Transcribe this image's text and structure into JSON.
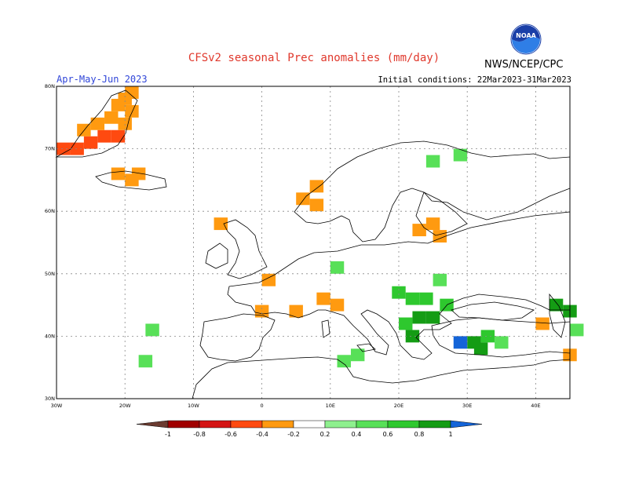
{
  "title": "CFSv2 seasonal Prec anomalies (mm/day)",
  "period": "Apr-May-Jun 2023",
  "initial_conditions": "Initial conditions: 22Mar2023-31Mar2023",
  "agency": "NWS/NCEP/CPC",
  "logo_text": "NOAA",
  "map": {
    "lon_range": [
      -30,
      45
    ],
    "lat_range": [
      30,
      80
    ],
    "lon_ticks": [
      {
        "value": -30,
        "label": "30W"
      },
      {
        "value": -20,
        "label": "20W"
      },
      {
        "value": -10,
        "label": "10W"
      },
      {
        "value": 0,
        "label": "0"
      },
      {
        "value": 10,
        "label": "10E"
      },
      {
        "value": 20,
        "label": "20E"
      },
      {
        "value": 30,
        "label": "30E"
      },
      {
        "value": 40,
        "label": "40E"
      }
    ],
    "lat_ticks": [
      {
        "value": 30,
        "label": "30N"
      },
      {
        "value": 40,
        "label": "40N"
      },
      {
        "value": 50,
        "label": "50N"
      },
      {
        "value": 60,
        "label": "60N"
      },
      {
        "value": 70,
        "label": "70N"
      },
      {
        "value": 80,
        "label": "80N"
      }
    ],
    "grid": "dotted"
  },
  "colorbar": {
    "labels": [
      "-1",
      "-0.8",
      "-0.6",
      "-0.4",
      "-0.2",
      "0.2",
      "0.4",
      "0.6",
      "0.8",
      "1"
    ],
    "colors": [
      "#6b3b30",
      "#a00000",
      "#d41414",
      "#ff4a10",
      "#ff9a10",
      "#ffffff",
      "#8ef08e",
      "#58e058",
      "#2ec82e",
      "#149c14",
      "#1464d8"
    ]
  },
  "anomalies": [
    {
      "lon": -30,
      "lat": 69,
      "value": -0.6
    },
    {
      "lon": -28,
      "lat": 69,
      "value": -0.6
    },
    {
      "lon": -26,
      "lat": 70,
      "value": -0.6
    },
    {
      "lon": -24,
      "lat": 71,
      "value": -0.6
    },
    {
      "lon": -22,
      "lat": 71,
      "value": -0.6
    },
    {
      "lon": -27,
      "lat": 72,
      "value": -0.4
    },
    {
      "lon": -25,
      "lat": 73,
      "value": -0.4
    },
    {
      "lon": -23,
      "lat": 74,
      "value": -0.4
    },
    {
      "lon": -22,
      "lat": 76,
      "value": -0.4
    },
    {
      "lon": -21,
      "lat": 77,
      "value": -0.4
    },
    {
      "lon": -20,
      "lat": 78,
      "value": -0.4
    },
    {
      "lon": -21,
      "lat": 73,
      "value": -0.4
    },
    {
      "lon": -20,
      "lat": 75,
      "value": -0.4
    },
    {
      "lon": -22,
      "lat": 65,
      "value": -0.4
    },
    {
      "lon": -20,
      "lat": 64,
      "value": -0.4
    },
    {
      "lon": -19,
      "lat": 65,
      "value": -0.4
    },
    {
      "lon": 7,
      "lat": 63,
      "value": -0.4
    },
    {
      "lon": 5,
      "lat": 61,
      "value": -0.4
    },
    {
      "lon": 7,
      "lat": 60,
      "value": -0.4
    },
    {
      "lon": -7,
      "lat": 57,
      "value": -0.4
    },
    {
      "lon": 24,
      "lat": 57,
      "value": -0.4
    },
    {
      "lon": 22,
      "lat": 56,
      "value": -0.4
    },
    {
      "lon": 25,
      "lat": 55,
      "value": -0.4
    },
    {
      "lon": 0,
      "lat": 48,
      "value": -0.4
    },
    {
      "lon": -1,
      "lat": 43,
      "value": -0.4
    },
    {
      "lon": 4,
      "lat": 43,
      "value": -0.4
    },
    {
      "lon": 8,
      "lat": 45,
      "value": -0.4
    },
    {
      "lon": 10,
      "lat": 44,
      "value": -0.4
    },
    {
      "lon": 40,
      "lat": 41,
      "value": -0.4
    },
    {
      "lon": 44,
      "lat": 36,
      "value": -0.4
    },
    {
      "lon": -17,
      "lat": 40,
      "value": 0.4
    },
    {
      "lon": -18,
      "lat": 35,
      "value": 0.4
    },
    {
      "lon": 13,
      "lat": 36,
      "value": 0.4
    },
    {
      "lon": 11,
      "lat": 35,
      "value": 0.4
    },
    {
      "lon": 10,
      "lat": 50,
      "value": 0.4
    },
    {
      "lon": 28,
      "lat": 68,
      "value": 0.4
    },
    {
      "lon": 24,
      "lat": 67,
      "value": 0.4
    },
    {
      "lon": 25,
      "lat": 48,
      "value": 0.4
    },
    {
      "lon": 19,
      "lat": 46,
      "value": 0.6
    },
    {
      "lon": 21,
      "lat": 45,
      "value": 0.6
    },
    {
      "lon": 23,
      "lat": 45,
      "value": 0.6
    },
    {
      "lon": 26,
      "lat": 44,
      "value": 0.6
    },
    {
      "lon": 22,
      "lat": 42,
      "value": 0.8
    },
    {
      "lon": 24,
      "lat": 42,
      "value": 0.8
    },
    {
      "lon": 20,
      "lat": 41,
      "value": 0.6
    },
    {
      "lon": 21,
      "lat": 39,
      "value": 0.8
    },
    {
      "lon": 32,
      "lat": 39,
      "value": 0.6
    },
    {
      "lon": 30,
      "lat": 38,
      "value": 0.8
    },
    {
      "lon": 28,
      "lat": 38,
      "value": 1.0
    },
    {
      "lon": 31,
      "lat": 37,
      "value": 0.8
    },
    {
      "lon": 34,
      "lat": 38,
      "value": 0.4
    },
    {
      "lon": 42,
      "lat": 44,
      "value": 0.8
    },
    {
      "lon": 44,
      "lat": 43,
      "value": 0.8
    },
    {
      "lon": 45,
      "lat": 40,
      "value": 0.4
    }
  ]
}
